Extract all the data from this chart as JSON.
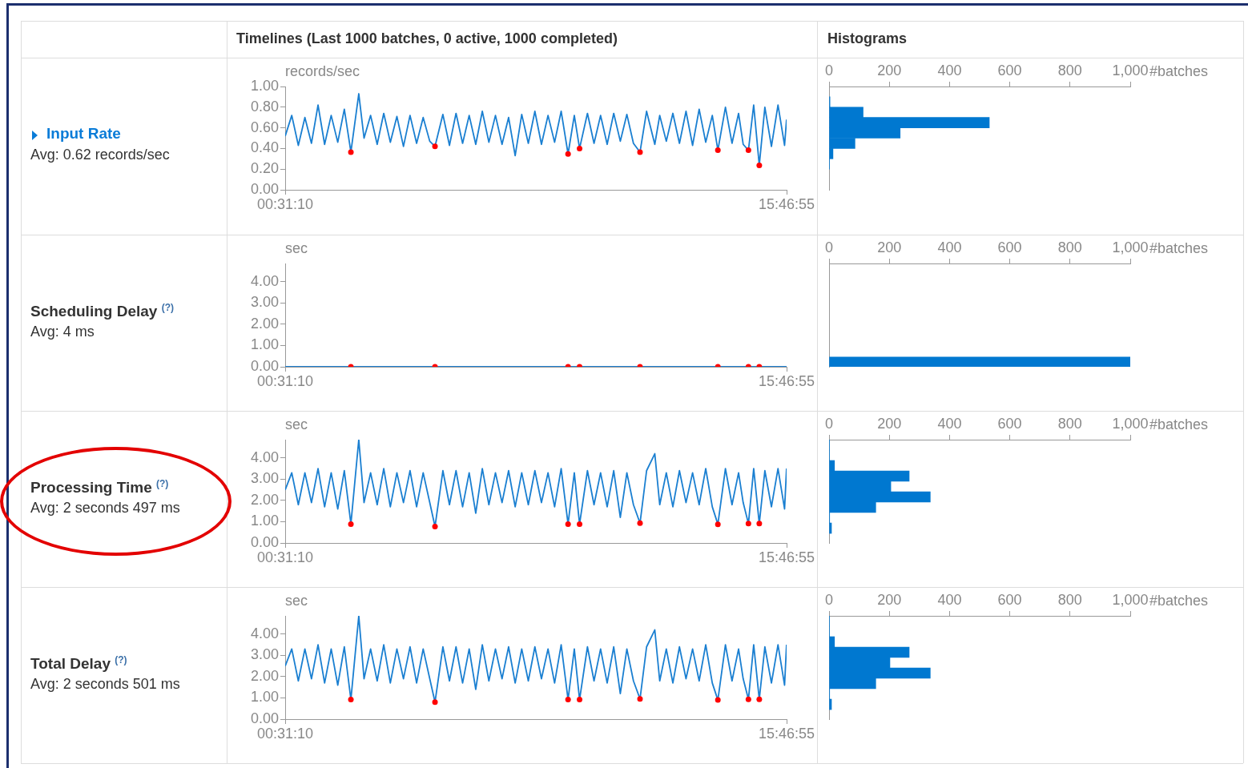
{
  "chart_data": [
    {
      "type": "other",
      "annotations": [
        "Timelines (Last 1000 batches, 0 active, 1000 completed)",
        "Histograms"
      ]
    },
    {
      "type": "other",
      "title": "Input Rate",
      "subtitle": "Avg: 0.62 records/sec"
    },
    {
      "type": "line",
      "ylabel": "records/sec",
      "x": [
        0.52,
        0.72,
        0.92,
        1.12,
        1.32,
        1.52,
        1.72,
        1.92,
        2.12,
        2.32,
        2.52,
        2.76,
        2.92,
        3.12,
        3.32,
        3.52,
        3.72,
        3.92,
        4.12,
        4.32,
        4.52,
        4.72,
        4.92,
        5.08,
        5.32,
        5.52,
        5.72,
        5.92,
        6.12,
        6.32,
        6.52,
        6.72,
        6.92,
        7.12,
        7.32,
        7.52,
        7.72,
        7.92,
        8.12,
        8.32,
        8.52,
        8.72,
        8.92,
        9.13,
        9.32,
        9.48,
        9.72,
        9.92,
        10.12,
        10.32,
        10.52,
        10.72,
        10.92,
        11.12,
        11.32,
        11.52,
        11.77,
        11.92,
        12.12,
        12.32,
        12.52,
        12.72,
        12.92,
        13.12,
        13.32,
        13.52,
        13.69,
        13.92,
        14.12,
        14.32,
        14.46,
        14.62,
        14.78,
        14.95,
        15.12,
        15.32,
        15.52,
        15.72,
        15.78
      ],
      "xlim": [
        0.5194,
        15.7819
      ],
      "xticks": [
        {
          "value": 0.5194,
          "label": "00:31:10"
        },
        {
          "value": 15.7819,
          "label": "15:46:55"
        }
      ],
      "ylim": [
        0,
        1
      ],
      "yticks": [
        {
          "value": 0,
          "label": "0.00"
        },
        {
          "value": 0.2,
          "label": "0.20"
        },
        {
          "value": 0.4,
          "label": "0.40"
        },
        {
          "value": 0.6,
          "label": "0.60"
        },
        {
          "value": 0.8,
          "label": "0.80"
        },
        {
          "value": 1,
          "label": "1.00"
        }
      ],
      "series": [
        {
          "color": "#1a7fd1",
          "values": [
            0.52,
            0.72,
            0.43,
            0.7,
            0.45,
            0.82,
            0.44,
            0.72,
            0.46,
            0.78,
            0.365,
            0.93,
            0.5,
            0.72,
            0.44,
            0.74,
            0.46,
            0.71,
            0.42,
            0.72,
            0.45,
            0.7,
            0.47,
            0.42,
            0.73,
            0.43,
            0.74,
            0.45,
            0.72,
            0.44,
            0.76,
            0.46,
            0.72,
            0.44,
            0.7,
            0.33,
            0.73,
            0.45,
            0.76,
            0.44,
            0.72,
            0.46,
            0.76,
            0.347,
            0.72,
            0.4,
            0.74,
            0.45,
            0.72,
            0.44,
            0.74,
            0.47,
            0.73,
            0.45,
            0.365,
            0.76,
            0.44,
            0.72,
            0.47,
            0.74,
            0.45,
            0.76,
            0.43,
            0.78,
            0.46,
            0.72,
            0.383,
            0.8,
            0.45,
            0.74,
            0.44,
            0.383,
            0.82,
            0.237,
            0.8,
            0.42,
            0.82,
            0.43,
            0.68
          ]
        },
        {
          "type": "scatter",
          "marker": "circle",
          "color": "#ff0000",
          "x": [
            2.52,
            5.08,
            9.13,
            9.48,
            11.32,
            13.69,
            14.62,
            14.95
          ],
          "values": [
            0.365,
            0.42,
            0.347,
            0.4,
            0.365,
            0.383,
            0.383,
            0.237
          ]
        }
      ]
    },
    {
      "type": "histogram",
      "orientation": "horizontal",
      "color": "#0078d0",
      "xlabel": "#batches",
      "bins": [
        0.2,
        0.3,
        0.4,
        0.5,
        0.6,
        0.7,
        0.8,
        0.9
      ],
      "values": [
        1,
        13,
        86,
        236,
        532,
        113,
        3
      ],
      "xlim": [
        0,
        1000
      ],
      "xticks": [
        0,
        200,
        400,
        600,
        800,
        {
          "value": 1000,
          "label": "1,000"
        }
      ],
      "ylim": [
        0,
        1
      ],
      "tick_labels": "x"
    },
    {
      "type": "other",
      "title": "Scheduling Delay $^{(?)}$",
      "subtitle": "Avg: 4 ms"
    },
    {
      "type": "line",
      "ylabel": "sec",
      "x": [
        0.52,
        15.78
      ],
      "xlim": [
        0.5194,
        15.7819
      ],
      "xticks": [
        {
          "value": 0.5194,
          "label": "00:31:10"
        },
        {
          "value": 15.7819,
          "label": "15:46:55"
        }
      ],
      "ylim": [
        0,
        4.86
      ],
      "yticks": [
        {
          "value": 0,
          "label": "0.00"
        },
        {
          "value": 1,
          "label": "1.00"
        },
        {
          "value": 2,
          "label": "2.00"
        },
        {
          "value": 3,
          "label": "3.00"
        },
        {
          "value": 4,
          "label": "4.00"
        }
      ],
      "series": [
        {
          "color": "#1a7fd1",
          "values": [
            0,
            0
          ]
        },
        {
          "type": "scatter",
          "marker": "circle",
          "color": "#ff0000",
          "x": [
            2.52,
            5.08,
            9.13,
            9.48,
            11.32,
            13.69,
            14.62,
            14.95
          ],
          "values": [
            0,
            0,
            0,
            0,
            0,
            0,
            0,
            0
          ]
        }
      ]
    },
    {
      "type": "histogram",
      "orientation": "horizontal",
      "color": "#0078d0",
      "xlabel": "#batches",
      "bins": [
        0,
        0.46
      ],
      "values": [
        1000
      ],
      "xlim": [
        0,
        1000
      ],
      "xticks": [
        0,
        200,
        400,
        600,
        800,
        {
          "value": 1000,
          "label": "1,000"
        }
      ],
      "ylim": [
        0,
        4.86
      ],
      "tick_labels": "x"
    },
    {
      "type": "other",
      "title": "Processing Time $^{(?)}$",
      "subtitle": "Avg: 2 seconds 497 ms"
    },
    {
      "type": "line",
      "ylabel": "sec",
      "x": [
        0.52,
        0.72,
        0.92,
        1.12,
        1.32,
        1.52,
        1.72,
        1.92,
        2.12,
        2.32,
        2.52,
        2.76,
        2.92,
        3.12,
        3.32,
        3.52,
        3.72,
        3.92,
        4.12,
        4.32,
        4.52,
        4.72,
        4.92,
        5.08,
        5.32,
        5.52,
        5.72,
        5.92,
        6.12,
        6.32,
        6.52,
        6.72,
        6.92,
        7.12,
        7.32,
        7.52,
        7.72,
        7.92,
        8.12,
        8.32,
        8.52,
        8.72,
        8.92,
        9.13,
        9.32,
        9.48,
        9.72,
        9.92,
        10.12,
        10.32,
        10.52,
        10.72,
        10.92,
        11.12,
        11.32,
        11.52,
        11.77,
        11.92,
        12.12,
        12.32,
        12.52,
        12.72,
        12.92,
        13.12,
        13.32,
        13.52,
        13.69,
        13.92,
        14.12,
        14.32,
        14.46,
        14.62,
        14.78,
        14.95,
        15.12,
        15.32,
        15.52,
        15.72,
        15.78
      ],
      "xlim": [
        0.5194,
        15.7819
      ],
      "xticks": [
        {
          "value": 0.5194,
          "label": "00:31:10"
        },
        {
          "value": 15.7819,
          "label": "15:46:55"
        }
      ],
      "ylim": [
        0,
        4.86
      ],
      "yticks": [
        {
          "value": 0,
          "label": "0.00"
        },
        {
          "value": 1,
          "label": "1.00"
        },
        {
          "value": 2,
          "label": "2.00"
        },
        {
          "value": 3,
          "label": "3.00"
        },
        {
          "value": 4,
          "label": "4.00"
        }
      ],
      "series": [
        {
          "color": "#1a7fd1",
          "values": [
            2.5,
            3.3,
            1.8,
            3.3,
            1.9,
            3.5,
            1.7,
            3.3,
            1.6,
            3.4,
            0.89,
            4.86,
            1.9,
            3.3,
            1.8,
            3.5,
            1.7,
            3.3,
            1.9,
            3.4,
            1.7,
            3.3,
            1.9,
            0.77,
            3.4,
            1.8,
            3.4,
            1.7,
            3.3,
            1.4,
            3.5,
            1.8,
            3.3,
            1.9,
            3.4,
            1.7,
            3.3,
            1.8,
            3.4,
            1.9,
            3.3,
            1.7,
            3.5,
            0.89,
            3.3,
            0.89,
            3.4,
            1.8,
            3.3,
            1.7,
            3.4,
            1.2,
            3.3,
            1.8,
            0.93,
            3.4,
            4.2,
            1.8,
            3.3,
            1.7,
            3.4,
            1.9,
            3.3,
            1.8,
            3.5,
            1.7,
            0.88,
            3.5,
            1.8,
            3.3,
            1.9,
            0.91,
            3.5,
            0.91,
            3.4,
            1.7,
            3.5,
            1.6,
            3.5
          ]
        },
        {
          "type": "scatter",
          "marker": "circle",
          "color": "#ff0000",
          "x": [
            2.52,
            5.08,
            9.13,
            9.48,
            11.32,
            13.69,
            14.62,
            14.95
          ],
          "values": [
            0.89,
            0.77,
            0.89,
            0.89,
            0.93,
            0.88,
            0.91,
            0.91
          ]
        }
      ]
    },
    {
      "type": "histogram",
      "orientation": "horizontal",
      "color": "#0078d0",
      "xlabel": "#batches",
      "bins": [
        0.45,
        0.94,
        1.43,
        1.92,
        2.41,
        2.9,
        3.39,
        3.88,
        4.37,
        4.86
      ],
      "values": [
        8,
        2,
        155,
        336,
        205,
        266,
        18,
        1,
        1
      ],
      "xlim": [
        0,
        1000
      ],
      "xticks": [
        0,
        200,
        400,
        600,
        800,
        {
          "value": 1000,
          "label": "1,000"
        }
      ],
      "ylim": [
        0,
        4.86
      ],
      "tick_labels": "x"
    },
    {
      "type": "other",
      "title": "Total Delay $^{(?)}$",
      "subtitle": "Avg: 2 seconds 501 ms"
    },
    {
      "type": "line",
      "ylabel": "sec",
      "x": [
        0.52,
        0.72,
        0.92,
        1.12,
        1.32,
        1.52,
        1.72,
        1.92,
        2.12,
        2.32,
        2.52,
        2.76,
        2.92,
        3.12,
        3.32,
        3.52,
        3.72,
        3.92,
        4.12,
        4.32,
        4.52,
        4.72,
        4.92,
        5.08,
        5.32,
        5.52,
        5.72,
        5.92,
        6.12,
        6.32,
        6.52,
        6.72,
        6.92,
        7.12,
        7.32,
        7.52,
        7.72,
        7.92,
        8.12,
        8.32,
        8.52,
        8.72,
        8.92,
        9.13,
        9.32,
        9.48,
        9.72,
        9.92,
        10.12,
        10.32,
        10.52,
        10.72,
        10.92,
        11.12,
        11.32,
        11.52,
        11.77,
        11.92,
        12.12,
        12.32,
        12.52,
        12.72,
        12.92,
        13.12,
        13.32,
        13.52,
        13.69,
        13.92,
        14.12,
        14.32,
        14.46,
        14.62,
        14.78,
        14.95,
        15.12,
        15.32,
        15.52,
        15.72,
        15.78
      ],
      "xlim": [
        0.5194,
        15.7819
      ],
      "xticks": [
        {
          "value": 0.5194,
          "label": "00:31:10"
        },
        {
          "value": 15.7819,
          "label": "15:46:55"
        }
      ],
      "ylim": [
        0,
        4.86
      ],
      "yticks": [
        {
          "value": 0,
          "label": "0.00"
        },
        {
          "value": 1,
          "label": "1.00"
        },
        {
          "value": 2,
          "label": "2.00"
        },
        {
          "value": 3,
          "label": "3.00"
        },
        {
          "value": 4,
          "label": "4.00"
        }
      ],
      "series": [
        {
          "color": "#1a7fd1",
          "values": [
            2.5,
            3.3,
            1.8,
            3.3,
            1.9,
            3.5,
            1.7,
            3.3,
            1.6,
            3.4,
            0.92,
            4.86,
            1.9,
            3.3,
            1.8,
            3.5,
            1.7,
            3.3,
            1.9,
            3.4,
            1.7,
            3.3,
            1.9,
            0.8,
            3.4,
            1.8,
            3.4,
            1.7,
            3.3,
            1.4,
            3.5,
            1.8,
            3.3,
            1.9,
            3.4,
            1.7,
            3.3,
            1.8,
            3.4,
            1.9,
            3.3,
            1.7,
            3.5,
            0.92,
            3.3,
            0.92,
            3.4,
            1.8,
            3.3,
            1.7,
            3.4,
            1.2,
            3.3,
            1.8,
            0.95,
            3.4,
            4.2,
            1.8,
            3.3,
            1.7,
            3.4,
            1.9,
            3.3,
            1.8,
            3.5,
            1.7,
            0.9,
            3.5,
            1.8,
            3.3,
            1.9,
            0.93,
            3.5,
            0.93,
            3.4,
            1.7,
            3.5,
            1.6,
            3.5
          ]
        },
        {
          "type": "scatter",
          "marker": "circle",
          "color": "#ff0000",
          "x": [
            2.52,
            5.08,
            9.13,
            9.48,
            11.32,
            13.69,
            14.62,
            14.95
          ],
          "values": [
            0.92,
            0.8,
            0.92,
            0.92,
            0.95,
            0.9,
            0.93,
            0.93
          ]
        }
      ]
    },
    {
      "type": "histogram",
      "orientation": "horizontal",
      "color": "#0078d0",
      "xlabel": "#batches",
      "bins": [
        0.45,
        0.94,
        1.43,
        1.92,
        2.41,
        2.9,
        3.39,
        3.88,
        4.37,
        4.86
      ],
      "values": [
        8,
        2,
        155,
        336,
        202,
        266,
        18,
        1,
        1
      ],
      "xlim": [
        0,
        1000
      ],
      "xticks": [
        0,
        200,
        400,
        600,
        800,
        {
          "value": 1000,
          "label": "1,000"
        }
      ],
      "ylim": [
        0,
        4.86
      ],
      "tick_labels": "x"
    }
  ]
}
